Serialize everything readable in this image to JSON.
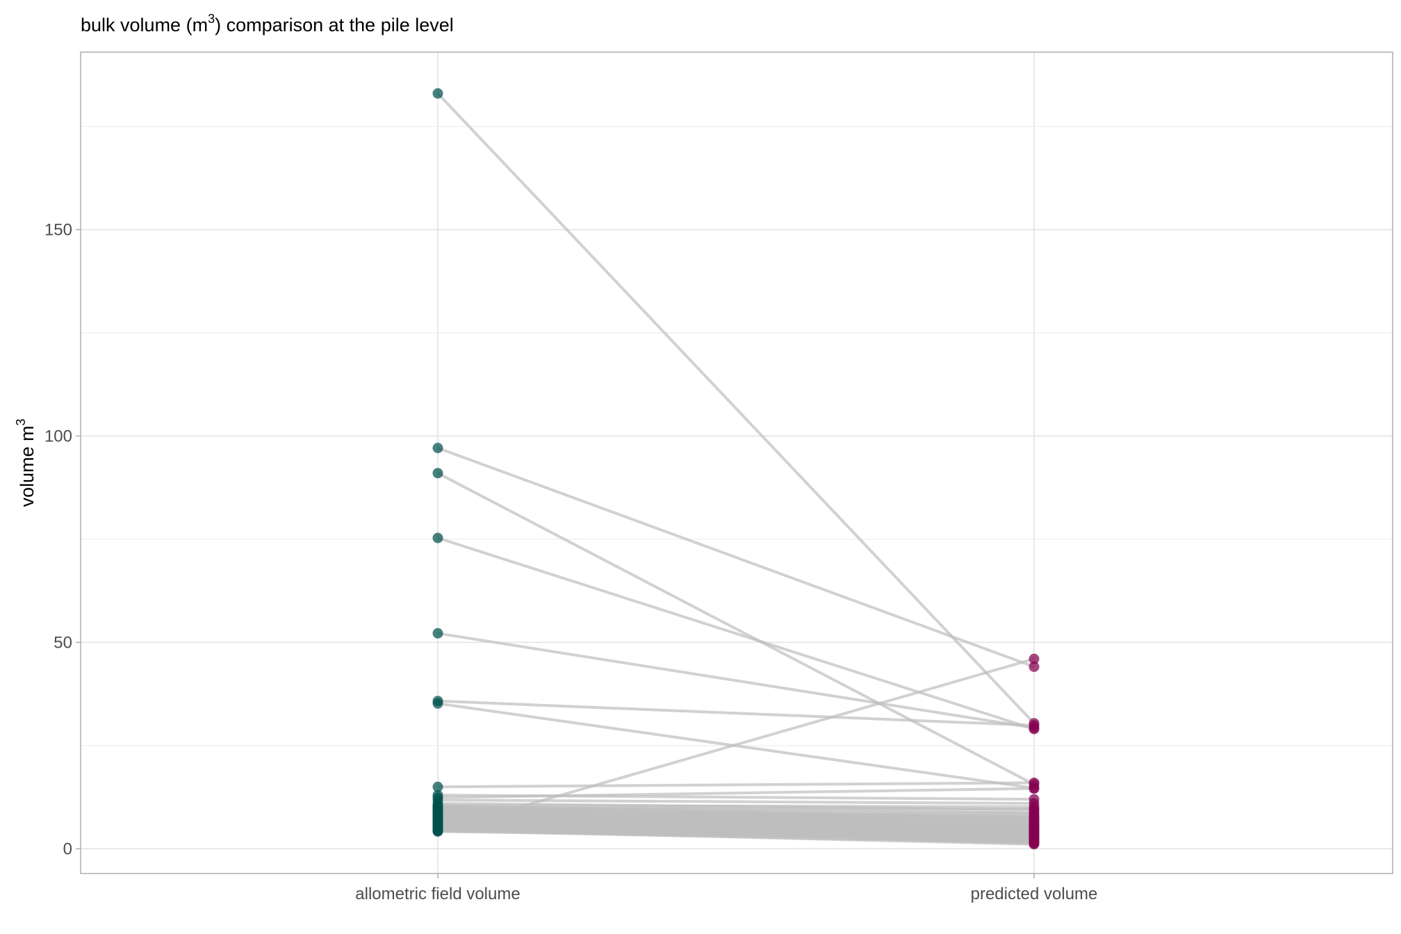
{
  "chart_data": {
    "type": "line",
    "title": "bulk volume (m",
    "title_sup": "3",
    "title_tail": ") comparison at the pile level",
    "ylabel": "volume m",
    "ylabel_sup": "3",
    "categories": [
      "allometric field volume",
      "predicted volume"
    ],
    "ylim": [
      -6,
      193
    ],
    "yticks": [
      0,
      50,
      100,
      150
    ],
    "ytick_labels": [
      "0",
      "50",
      "100",
      "150"
    ],
    "grid": true,
    "colors": {
      "allometric field volume": "#00524d",
      "predicted volume": "#850050",
      "line": "#bebebe"
    },
    "pairs": [
      [
        183.0,
        30.4
      ],
      [
        97.1,
        44.1
      ],
      [
        91.0,
        15.6
      ],
      [
        75.3,
        29.0
      ],
      [
        52.2,
        29.3
      ],
      [
        35.8,
        29.9
      ],
      [
        35.2,
        14.7
      ],
      [
        15.0,
        16.0
      ],
      [
        13.0,
        12.0
      ],
      [
        11.8,
        11.0
      ],
      [
        12.4,
        14.6
      ],
      [
        11.0,
        9.5
      ],
      [
        10.5,
        10.2
      ],
      [
        10.2,
        8.8
      ],
      [
        9.9,
        9.6
      ],
      [
        9.6,
        7.9
      ],
      [
        9.4,
        8.6
      ],
      [
        9.1,
        7.2
      ],
      [
        8.9,
        6.8
      ],
      [
        8.7,
        8.1
      ],
      [
        8.5,
        5.9
      ],
      [
        8.3,
        7.6
      ],
      [
        8.1,
        6.3
      ],
      [
        7.9,
        5.5
      ],
      [
        7.7,
        7.0
      ],
      [
        7.5,
        4.9
      ],
      [
        7.3,
        6.1
      ],
      [
        7.1,
        4.4
      ],
      [
        6.9,
        5.3
      ],
      [
        6.7,
        3.9
      ],
      [
        6.5,
        4.7
      ],
      [
        6.3,
        3.5
      ],
      [
        6.1,
        5.1
      ],
      [
        5.9,
        3.1
      ],
      [
        5.7,
        4.2
      ],
      [
        5.5,
        2.7
      ],
      [
        5.3,
        3.7
      ],
      [
        5.1,
        2.3
      ],
      [
        4.9,
        3.3
      ],
      [
        4.7,
        1.9
      ],
      [
        4.5,
        2.9
      ],
      [
        4.3,
        1.5
      ],
      [
        4.2,
        2.5
      ],
      [
        4.6,
        1.1
      ],
      [
        5.0,
        2.1
      ],
      [
        5.4,
        1.7
      ],
      [
        5.8,
        1.3
      ],
      [
        6.2,
        2.4
      ],
      [
        6.6,
        3.0
      ],
      [
        7.0,
        3.6
      ],
      [
        7.4,
        4.0
      ],
      [
        7.8,
        4.6
      ],
      [
        8.2,
        5.0
      ],
      [
        8.6,
        5.6
      ],
      [
        9.0,
        6.0
      ],
      [
        9.8,
        6.6
      ],
      [
        10.4,
        7.4
      ],
      [
        4.4,
        46.0
      ]
    ]
  }
}
